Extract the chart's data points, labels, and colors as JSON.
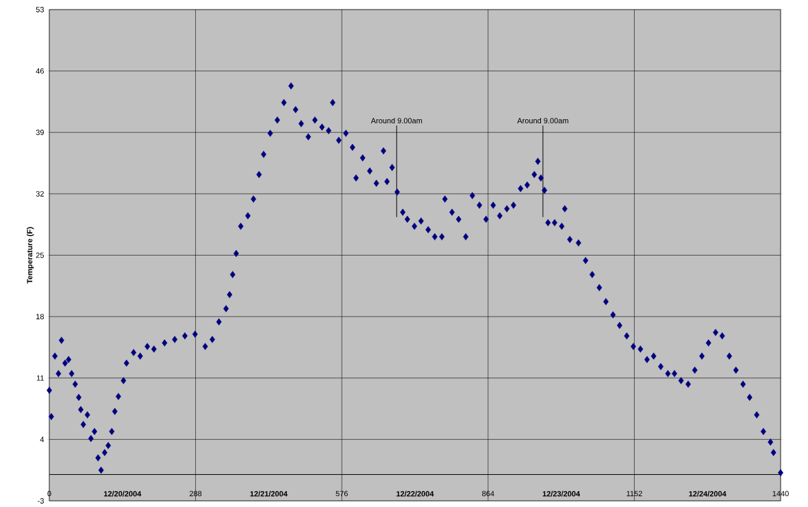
{
  "chart_data": {
    "type": "scatter",
    "ylabel": "Temperature (F)",
    "x": [
      0,
      4,
      11,
      18,
      24,
      31,
      38,
      44,
      51,
      58,
      62,
      67,
      75,
      82,
      89,
      96,
      102,
      109,
      116,
      123,
      129,
      136,
      146,
      152,
      166,
      179,
      193,
      206,
      227,
      247,
      267,
      287,
      307,
      321,
      334,
      348,
      355,
      361,
      368,
      377,
      391,
      402,
      413,
      422,
      435,
      449,
      462,
      476,
      485,
      496,
      510,
      523,
      537,
      550,
      558,
      570,
      584,
      597,
      604,
      617,
      631,
      644,
      658,
      665,
      675,
      685,
      696,
      705,
      719,
      732,
      746,
      759,
      773,
      779,
      793,
      806,
      820,
      833,
      847,
      860,
      874,
      887,
      901,
      914,
      928,
      941,
      955,
      962,
      968,
      975,
      982,
      995,
      1009,
      1015,
      1025,
      1042,
      1056,
      1069,
      1083,
      1096,
      1110,
      1123,
      1137,
      1150,
      1164,
      1177,
      1190,
      1204,
      1218,
      1231,
      1244,
      1258,
      1271,
      1285,
      1298,
      1312,
      1325,
      1339,
      1352,
      1366,
      1379,
      1393,
      1406,
      1420,
      1426,
      1440
    ],
    "series": [
      {
        "color": "#000080",
        "values": [
          9.6,
          6.6,
          13.5,
          11.5,
          15.3,
          12.7,
          13.1,
          11.5,
          10.3,
          8.8,
          7.4,
          5.7,
          6.8,
          4.1,
          4.9,
          1.9,
          0.5,
          2.5,
          3.3,
          4.9,
          7.2,
          8.9,
          10.7,
          12.7,
          13.9,
          13.5,
          14.6,
          14.3,
          15.0,
          15.4,
          15.8,
          16.0,
          14.6,
          15.4,
          17.4,
          18.9,
          20.5,
          22.8,
          25.2,
          28.3,
          29.5,
          31.4,
          34.2,
          36.5,
          38.9,
          40.4,
          42.4,
          44.3,
          41.6,
          40.0,
          38.5,
          40.4,
          39.6,
          39.2,
          42.4,
          38.1,
          38.9,
          37.3,
          33.8,
          36.1,
          34.6,
          33.2,
          36.9,
          33.4,
          35.0,
          32.2,
          29.9,
          29.1,
          28.3,
          28.9,
          27.9,
          27.1,
          27.1,
          31.4,
          29.9,
          29.1,
          27.1,
          31.8,
          30.7,
          29.1,
          30.7,
          29.5,
          30.3,
          30.7,
          32.6,
          33.0,
          34.2,
          35.7,
          33.8,
          32.4,
          28.7,
          28.7,
          28.3,
          30.3,
          26.8,
          26.4,
          24.4,
          22.8,
          21.3,
          19.7,
          18.2,
          17.0,
          15.8,
          14.6,
          14.3,
          13.1,
          13.5,
          12.3,
          11.5,
          11.5,
          10.7,
          10.3,
          11.9,
          13.5,
          15.0,
          16.2,
          15.8,
          13.5,
          11.9,
          10.3,
          8.8,
          6.8,
          4.9,
          3.7,
          2.5,
          0.2
        ]
      }
    ],
    "xlim": [
      0,
      1440
    ],
    "xticks": [
      0,
      288,
      576,
      864,
      1152,
      1440,
      {
        "value": 144,
        "label": "12/20/2004"
      },
      {
        "value": 432,
        "label": "12/21/2004"
      },
      {
        "value": 720,
        "label": "12/22/2004"
      },
      {
        "value": 1008,
        "label": "12/23/2004"
      },
      {
        "value": 1296,
        "label": "12/24/2004"
      }
    ],
    "ylim": [
      -3,
      53
    ],
    "yticks": [
      -3,
      4,
      11,
      18,
      25,
      32,
      39,
      46,
      53
    ],
    "grid": true,
    "marker": "diamond",
    "ref_lines": [
      {
        "axis": "y",
        "value": 0,
        "color": "#000000"
      },
      {
        "axis": "x",
        "value": 684,
        "label": "Around 9.00am",
        "color": "#000000"
      },
      {
        "axis": "x",
        "value": 972,
        "label": "Around 9.00am",
        "color": "#000000"
      }
    ]
  }
}
